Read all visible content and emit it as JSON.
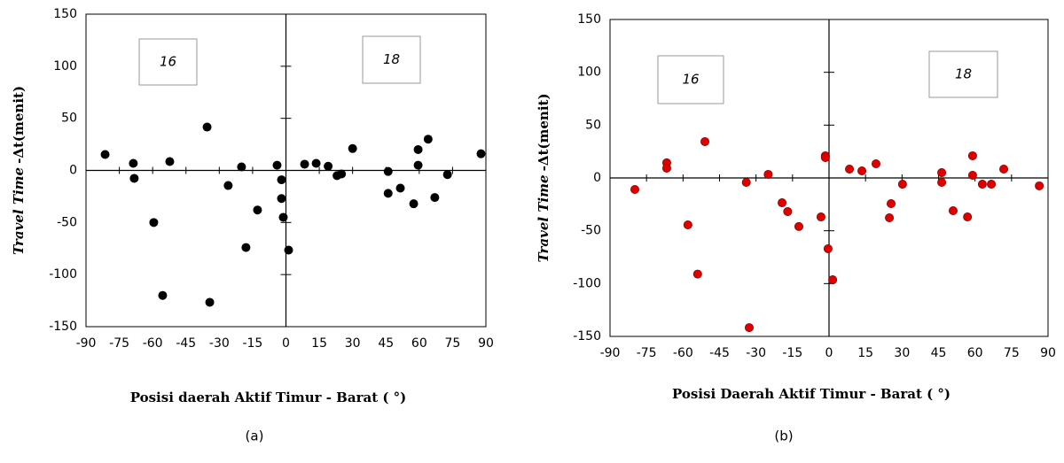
{
  "chart_data": [
    {
      "type": "scatter",
      "color": "#000000",
      "ylabel": [
        "Travel Time",
        "-Δt(menit)"
      ],
      "xlabel": "Posisi  daerah Aktif  Timur - Barat  ( °)",
      "annotations": [
        "16",
        "18"
      ],
      "caption": "(a)",
      "xlim": [
        -90,
        90
      ],
      "xticks": [
        -90,
        -75,
        -60,
        -45,
        -30,
        -15,
        0,
        15,
        30,
        45,
        60,
        75,
        90
      ],
      "ylim": [
        -150,
        150
      ],
      "yticks": [
        -150,
        -100,
        -50,
        0,
        50,
        100,
        150
      ],
      "x": [
        -81.4,
        -68.7,
        -68.3,
        -52.3,
        -59.5,
        -55.5,
        -35.5,
        -34.3,
        -26,
        -20,
        -18,
        -12.8,
        -4,
        -2,
        -2,
        -1.2,
        1.2,
        8.4,
        13.6,
        19,
        23,
        25,
        30,
        46,
        46,
        51.5,
        57.5,
        59.5,
        59.5,
        64,
        67,
        72.7,
        87.8
      ],
      "values": [
        15.3,
        6.8,
        -7.6,
        8.5,
        -50,
        -120,
        41.6,
        -126.6,
        -14.5,
        3.4,
        -74,
        -38,
        5,
        -9,
        -27,
        -45,
        -76.5,
        6,
        6.8,
        4,
        -5,
        -3.4,
        21,
        -1,
        -22,
        -17,
        -32,
        20,
        5,
        30,
        -26,
        -4,
        16
      ]
    },
    {
      "type": "scatter",
      "color": "#e00000",
      "ylabel": [
        "Travel Time",
        "-Δt(menit)"
      ],
      "xlabel": "Posisi Daerah Aktif  Timur -  Barat ( °)",
      "annotations": [
        "16",
        "18"
      ],
      "caption": "(b)",
      "xlim": [
        -90,
        90
      ],
      "xticks": [
        -90,
        -75,
        -60,
        -45,
        -30,
        -15,
        0,
        15,
        30,
        45,
        60,
        75,
        90
      ],
      "ylim": [
        -150,
        150
      ],
      "yticks": [
        -150,
        -100,
        -50,
        0,
        50,
        100,
        150
      ],
      "x": [
        -79.8,
        -66.7,
        -66.7,
        -58,
        -54,
        -51,
        -34,
        -32.8,
        -25,
        -19.3,
        -17,
        -12.4,
        -3.3,
        -1.5,
        -1.5,
        -0.4,
        1.5,
        8.4,
        13.5,
        19.3,
        24.8,
        25.5,
        30.2,
        46.3,
        46.3,
        51,
        56.9,
        59,
        59,
        63,
        66.7,
        71.8,
        86.4
      ],
      "values": [
        -10.9,
        14.3,
        9.2,
        -44.4,
        -91,
        34.4,
        -4.2,
        -141.7,
        3.4,
        -23.5,
        -31.8,
        -46,
        -36.9,
        21,
        19.3,
        -67,
        -96.4,
        8.4,
        6.7,
        13.4,
        -37.7,
        -24.3,
        -5.9,
        5,
        -4.2,
        -31,
        -36.9,
        21,
        2.5,
        -5.9,
        -5.9,
        8.4,
        -7.5
      ]
    }
  ]
}
